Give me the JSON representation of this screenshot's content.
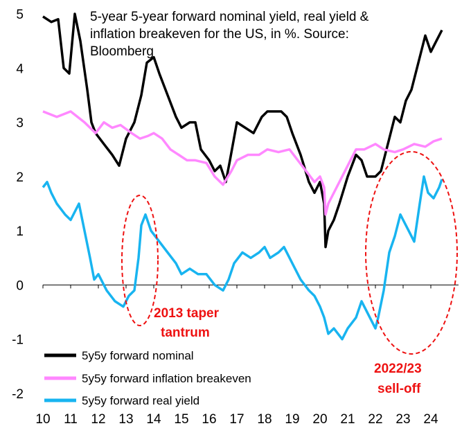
{
  "chart_data": {
    "type": "line",
    "title": "5-year 5-year forward nominal yield, real yield & inflation breakeven for the US, in %. Source: Bloomberg",
    "title_lines": [
      "5-year 5-year forward nominal yield, real yield &",
      "inflation breakeven for the US, in %. Source:",
      "Bloomberg"
    ],
    "xlabel": "",
    "ylabel": "",
    "xlim": [
      2010,
      2025
    ],
    "ylim": [
      -2,
      5
    ],
    "x_ticks": [
      "10",
      "11",
      "12",
      "13",
      "14",
      "15",
      "16",
      "17",
      "18",
      "19",
      "20",
      "21",
      "22",
      "23",
      "24"
    ],
    "y_ticks": [
      "5",
      "4",
      "3",
      "2",
      "1",
      "0",
      "-1",
      "-2"
    ],
    "grid": false,
    "legend_position": "bottom-left",
    "series": [
      {
        "name": "5y5y forward nominal",
        "color": "#000000",
        "x": [
          2010.0,
          2010.3,
          2010.55,
          2010.75,
          2010.95,
          2011.15,
          2011.35,
          2011.6,
          2011.75,
          2011.9,
          2012.2,
          2012.5,
          2012.75,
          2013.0,
          2013.3,
          2013.55,
          2013.75,
          2014.0,
          2014.2,
          2014.5,
          2014.8,
          2015.0,
          2015.3,
          2015.5,
          2015.7,
          2016.0,
          2016.2,
          2016.4,
          2016.6,
          2016.75,
          2017.0,
          2017.3,
          2017.6,
          2017.9,
          2018.1,
          2018.3,
          2018.6,
          2018.8,
          2019.0,
          2019.3,
          2019.6,
          2019.8,
          2020.0,
          2020.15,
          2020.2,
          2020.3,
          2020.5,
          2020.7,
          2021.0,
          2021.3,
          2021.5,
          2021.7,
          2022.0,
          2022.2,
          2022.5,
          2022.7,
          2022.9,
          2023.1,
          2023.3,
          2023.5,
          2023.7,
          2023.8,
          2024.0,
          2024.2,
          2024.4
        ],
        "values": [
          4.95,
          4.85,
          4.9,
          4.0,
          3.9,
          5.0,
          4.5,
          3.6,
          3.0,
          2.8,
          2.6,
          2.4,
          2.2,
          2.7,
          3.0,
          3.5,
          4.1,
          4.2,
          3.9,
          3.5,
          3.1,
          2.9,
          3.0,
          3.0,
          2.5,
          2.3,
          2.1,
          2.2,
          1.9,
          2.3,
          3.0,
          2.9,
          2.8,
          3.1,
          3.2,
          3.2,
          3.2,
          3.1,
          2.8,
          2.4,
          1.9,
          1.7,
          1.9,
          1.5,
          0.7,
          1.0,
          1.2,
          1.5,
          2.0,
          2.4,
          2.3,
          2.0,
          2.0,
          2.1,
          2.7,
          3.1,
          3.0,
          3.4,
          3.6,
          4.0,
          4.4,
          4.6,
          4.3,
          4.5,
          4.7
        ]
      },
      {
        "name": "5y5y forward inflation breakeven",
        "color": "#ff88ff",
        "x": [
          2010.0,
          2010.5,
          2011.0,
          2011.5,
          2011.9,
          2012.2,
          2012.5,
          2012.8,
          2013.2,
          2013.5,
          2013.8,
          2014.0,
          2014.3,
          2014.6,
          2014.9,
          2015.2,
          2015.5,
          2015.9,
          2016.2,
          2016.5,
          2016.8,
          2017.0,
          2017.4,
          2017.8,
          2018.1,
          2018.5,
          2018.9,
          2019.2,
          2019.5,
          2019.8,
          2020.0,
          2020.15,
          2020.2,
          2020.3,
          2020.6,
          2021.0,
          2021.3,
          2021.6,
          2022.0,
          2022.3,
          2022.7,
          2023.0,
          2023.4,
          2023.8,
          2024.1,
          2024.4
        ],
        "values": [
          3.2,
          3.1,
          3.2,
          3.0,
          2.8,
          3.0,
          2.9,
          2.95,
          2.8,
          2.7,
          2.75,
          2.8,
          2.7,
          2.5,
          2.4,
          2.3,
          2.3,
          2.25,
          2.0,
          1.85,
          2.1,
          2.3,
          2.4,
          2.4,
          2.5,
          2.45,
          2.5,
          2.3,
          2.1,
          1.9,
          2.0,
          1.8,
          1.3,
          1.5,
          1.8,
          2.2,
          2.5,
          2.5,
          2.6,
          2.5,
          2.45,
          2.5,
          2.6,
          2.55,
          2.65,
          2.7
        ]
      },
      {
        "name": "5y5y forward real yield",
        "color": "#18b4f0",
        "x": [
          2010.0,
          2010.15,
          2010.3,
          2010.5,
          2010.8,
          2011.0,
          2011.3,
          2011.5,
          2011.7,
          2011.85,
          2012.0,
          2012.3,
          2012.6,
          2012.9,
          2013.1,
          2013.3,
          2013.45,
          2013.55,
          2013.7,
          2013.9,
          2014.2,
          2014.5,
          2014.8,
          2015.0,
          2015.3,
          2015.6,
          2015.9,
          2016.2,
          2016.5,
          2016.7,
          2016.9,
          2017.2,
          2017.5,
          2017.8,
          2018.0,
          2018.2,
          2018.5,
          2018.7,
          2019.0,
          2019.3,
          2019.6,
          2019.8,
          2020.0,
          2020.15,
          2020.3,
          2020.5,
          2020.8,
          2021.0,
          2021.3,
          2021.5,
          2021.8,
          2022.0,
          2022.1,
          2022.3,
          2022.5,
          2022.7,
          2022.9,
          2023.0,
          2023.2,
          2023.4,
          2023.6,
          2023.75,
          2023.9,
          2024.1,
          2024.3,
          2024.4
        ],
        "values": [
          1.8,
          1.9,
          1.7,
          1.5,
          1.3,
          1.2,
          1.5,
          1.0,
          0.5,
          0.1,
          0.2,
          -0.1,
          -0.3,
          -0.4,
          -0.2,
          -0.1,
          0.5,
          1.1,
          1.3,
          1.0,
          0.8,
          0.6,
          0.4,
          0.2,
          0.3,
          0.2,
          0.2,
          0.0,
          -0.1,
          0.1,
          0.4,
          0.6,
          0.5,
          0.6,
          0.7,
          0.5,
          0.6,
          0.7,
          0.4,
          0.1,
          -0.1,
          -0.2,
          -0.4,
          -0.6,
          -0.9,
          -0.8,
          -1.0,
          -0.8,
          -0.6,
          -0.3,
          -0.6,
          -0.8,
          -0.6,
          -0.1,
          0.6,
          0.9,
          1.3,
          1.2,
          1.0,
          0.8,
          1.5,
          2.0,
          1.7,
          1.6,
          1.8,
          1.95
        ]
      }
    ],
    "annotations": [
      {
        "lines": [
          "2013 taper",
          "tantrum"
        ],
        "color": "#ee1111"
      },
      {
        "lines": [
          "2022/23",
          "sell-off"
        ],
        "color": "#ee1111"
      }
    ]
  }
}
